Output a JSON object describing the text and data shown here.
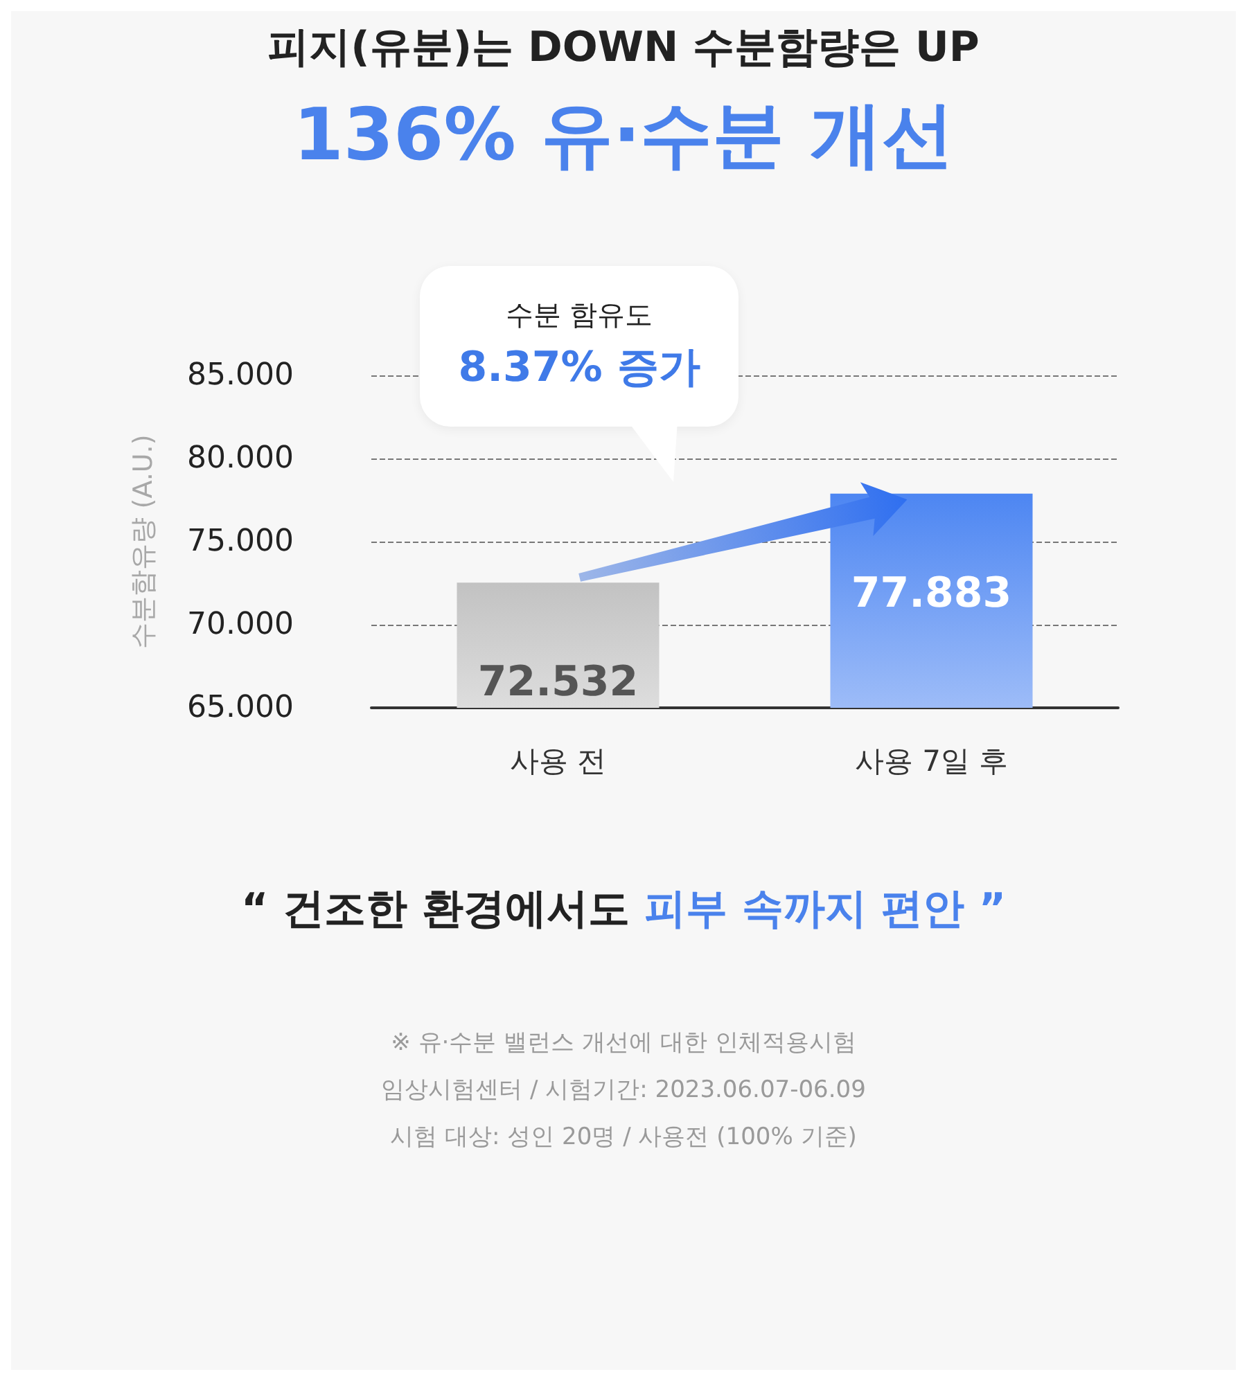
{
  "chart_data": {
    "type": "bar",
    "title": "피지(유분)는 DOWN 수분함량은 UP",
    "subtitle": "136% 유·수분 개선",
    "ylabel": "수분함유량 (A.U.)",
    "categories": [
      "사용 전",
      "사용 7일 후"
    ],
    "values": [
      72.532,
      77.883
    ],
    "colors": [
      "#c2c2c2",
      "#4d86f2"
    ],
    "ylim": [
      65,
      85
    ],
    "yticks": [
      {
        "value": 65,
        "label": "65.000"
      },
      {
        "value": 70,
        "label": "70.000"
      },
      {
        "value": 75,
        "label": "75.000"
      },
      {
        "value": 80,
        "label": "80.000"
      },
      {
        "value": 85,
        "label": "85.000"
      }
    ],
    "grid": "y",
    "data_labels": true,
    "annotations": [
      "수분 함유도",
      "8.37% 증가",
      "“ 건조한 환경에서도",
      "피부 속까지 편안 ”",
      "※ 유·수분 밸런스 개선에 대한 인체적용시험",
      "임상시험센터  /  시험기간: 2023.06.07-06.09",
      "시험 대상: 성인 20명 / 사용전 (100% 기준)"
    ]
  }
}
